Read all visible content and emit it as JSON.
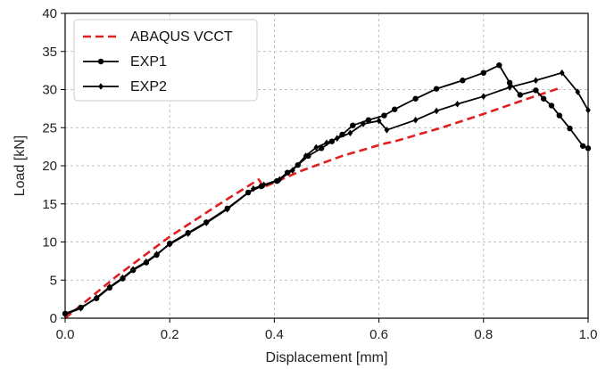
{
  "chart_data": {
    "type": "line",
    "xlabel": "Displacement [mm]",
    "ylabel": "Load [kN]",
    "xlim": [
      0.0,
      1.0
    ],
    "ylim": [
      0,
      40
    ],
    "x_ticks": [
      "0.0",
      "0.2",
      "0.4",
      "0.6",
      "0.8",
      "1.0"
    ],
    "y_ticks": [
      "0",
      "5",
      "10",
      "15",
      "20",
      "25",
      "30",
      "35",
      "40"
    ],
    "grid": true,
    "legend_position": "top-left",
    "series": [
      {
        "name": "ABAQUS VCCT",
        "color": "#e02020",
        "style": "dashed",
        "marker": "none",
        "points": [
          [
            0.0,
            0.0
          ],
          [
            0.1,
            5.6
          ],
          [
            0.2,
            10.7
          ],
          [
            0.3,
            15.2
          ],
          [
            0.37,
            18.2
          ],
          [
            0.38,
            17.2
          ],
          [
            0.45,
            19.3
          ],
          [
            0.53,
            21.3
          ],
          [
            0.61,
            22.9
          ],
          [
            0.63,
            23.2
          ],
          [
            0.72,
            25.0
          ],
          [
            0.8,
            26.8
          ],
          [
            0.88,
            28.7
          ],
          [
            0.95,
            30.3
          ]
        ]
      },
      {
        "name": "EXP1",
        "color": "#000000",
        "style": "solid",
        "marker": "circle",
        "points": [
          [
            0.0,
            0.6
          ],
          [
            0.03,
            1.4
          ],
          [
            0.06,
            2.6
          ],
          [
            0.085,
            4.0
          ],
          [
            0.11,
            5.2
          ],
          [
            0.13,
            6.3
          ],
          [
            0.155,
            7.3
          ],
          [
            0.175,
            8.3
          ],
          [
            0.2,
            9.8
          ],
          [
            0.235,
            11.2
          ],
          [
            0.27,
            12.6
          ],
          [
            0.31,
            14.4
          ],
          [
            0.35,
            16.5
          ],
          [
            0.375,
            17.3
          ],
          [
            0.405,
            18.0
          ],
          [
            0.425,
            19.1
          ],
          [
            0.445,
            20.1
          ],
          [
            0.465,
            21.3
          ],
          [
            0.49,
            22.3
          ],
          [
            0.51,
            23.2
          ],
          [
            0.53,
            24.1
          ],
          [
            0.55,
            25.3
          ],
          [
            0.58,
            26.0
          ],
          [
            0.61,
            26.6
          ],
          [
            0.63,
            27.4
          ],
          [
            0.67,
            28.8
          ],
          [
            0.71,
            30.1
          ],
          [
            0.76,
            31.2
          ],
          [
            0.8,
            32.2
          ],
          [
            0.83,
            33.2
          ],
          [
            0.85,
            30.9
          ],
          [
            0.87,
            29.3
          ],
          [
            0.9,
            29.9
          ],
          [
            0.915,
            28.8
          ],
          [
            0.93,
            27.9
          ],
          [
            0.945,
            26.6
          ],
          [
            0.965,
            24.9
          ],
          [
            0.99,
            22.6
          ],
          [
            1.0,
            22.3
          ]
        ]
      },
      {
        "name": "EXP2",
        "color": "#000000",
        "style": "solid",
        "marker": "diamond",
        "points": [
          [
            0.0,
            0.5
          ],
          [
            0.03,
            1.3
          ],
          [
            0.06,
            2.7
          ],
          [
            0.085,
            4.1
          ],
          [
            0.11,
            5.3
          ],
          [
            0.13,
            6.4
          ],
          [
            0.155,
            7.4
          ],
          [
            0.175,
            8.4
          ],
          [
            0.2,
            9.7
          ],
          [
            0.235,
            11.1
          ],
          [
            0.27,
            12.5
          ],
          [
            0.31,
            14.3
          ],
          [
            0.36,
            17.0
          ],
          [
            0.38,
            17.5
          ],
          [
            0.41,
            18.2
          ],
          [
            0.435,
            19.4
          ],
          [
            0.46,
            21.3
          ],
          [
            0.48,
            22.4
          ],
          [
            0.5,
            23.0
          ],
          [
            0.52,
            23.6
          ],
          [
            0.545,
            24.3
          ],
          [
            0.57,
            25.5
          ],
          [
            0.6,
            25.9
          ],
          [
            0.615,
            24.7
          ],
          [
            0.67,
            26.0
          ],
          [
            0.71,
            27.2
          ],
          [
            0.75,
            28.1
          ],
          [
            0.8,
            29.1
          ],
          [
            0.85,
            30.3
          ],
          [
            0.9,
            31.2
          ],
          [
            0.95,
            32.2
          ],
          [
            0.98,
            29.7
          ],
          [
            1.0,
            27.3
          ]
        ]
      }
    ]
  }
}
